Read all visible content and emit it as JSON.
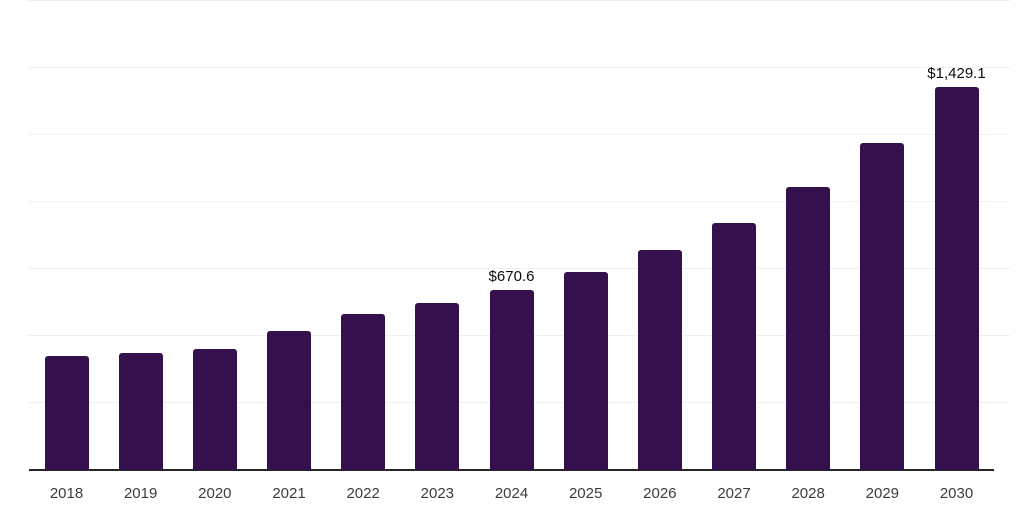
{
  "chart_data": {
    "type": "bar",
    "title": "",
    "xlabel": "",
    "ylabel": "",
    "categories": [
      "2018",
      "2019",
      "2020",
      "2021",
      "2022",
      "2023",
      "2024",
      "2025",
      "2026",
      "2027",
      "2028",
      "2029",
      "2030"
    ],
    "values": [
      426.9,
      436.4,
      451.3,
      518.4,
      581.6,
      622.9,
      670.6,
      738.3,
      820.4,
      921.1,
      1055.4,
      1219.5,
      1429.1
    ],
    "data_labels": [
      "",
      "",
      "",
      "",
      "",
      "",
      "$670.6",
      "",
      "",
      "",
      "",
      "",
      "$1,429.1"
    ],
    "ylim": [
      0,
      1750
    ],
    "gridline_step": 250,
    "grid": true,
    "legend_position": "none",
    "colors": {
      "bar": "#34114c",
      "gridline": "#f0f0f0",
      "axis_line": "#262626",
      "tick_label": "#3c3c3c",
      "data_label": "#0d0d0d",
      "background": "#ffffff"
    }
  }
}
